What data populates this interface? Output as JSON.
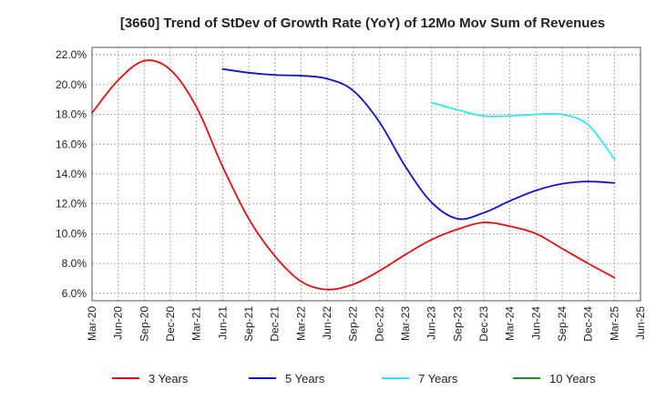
{
  "chart_data": {
    "type": "line",
    "title": "[3660]  Trend of StDev of Growth Rate (YoY) of 12Mo Mov Sum of Revenues",
    "xlabel": "",
    "ylabel": "",
    "ylim": [
      5.5,
      22.5
    ],
    "yticks": [
      6,
      8,
      10,
      12,
      14,
      16,
      18,
      20,
      22
    ],
    "ytick_labels": [
      "6.0%",
      "8.0%",
      "10.0%",
      "12.0%",
      "14.0%",
      "16.0%",
      "18.0%",
      "20.0%",
      "22.0%"
    ],
    "x_start": "Mar-20",
    "x_tick_labels": [
      "Mar-20",
      "Jun-20",
      "Sep-20",
      "Dec-20",
      "Mar-21",
      "Jun-21",
      "Sep-21",
      "Dec-21",
      "Mar-22",
      "Jun-22",
      "Sep-22",
      "Dec-22",
      "Mar-23",
      "Jun-23",
      "Sep-23",
      "Dec-23",
      "Mar-24",
      "Jun-24",
      "Sep-24",
      "Dec-24",
      "Mar-25",
      "Jun-25"
    ],
    "grid": true,
    "legend_position": "bottom",
    "series": [
      {
        "name": "3 Years",
        "color": "#dd1111",
        "start_index": 0,
        "values": [
          18.1,
          20.3,
          21.6,
          21.0,
          18.5,
          14.5,
          11.0,
          8.5,
          6.8,
          6.25,
          6.6,
          7.5,
          8.6,
          9.6,
          10.3,
          10.75,
          10.5,
          10.0,
          9.0,
          8.0,
          7.05
        ]
      },
      {
        "name": "5 Years",
        "color": "#1111cc",
        "start_index": 5,
        "values": [
          21.05,
          20.8,
          20.65,
          20.6,
          20.4,
          19.6,
          17.5,
          14.5,
          12.1,
          11.0,
          11.4,
          12.2,
          12.9,
          13.35,
          13.5,
          13.4
        ]
      },
      {
        "name": "7 Years",
        "color": "#33e5ee",
        "start_index": 13,
        "values": [
          18.8,
          18.3,
          17.9,
          17.9,
          18.0,
          18.0,
          17.3,
          15.0
        ]
      },
      {
        "name": "10 Years",
        "color": "#228822",
        "start_index": 0,
        "values": []
      }
    ]
  }
}
